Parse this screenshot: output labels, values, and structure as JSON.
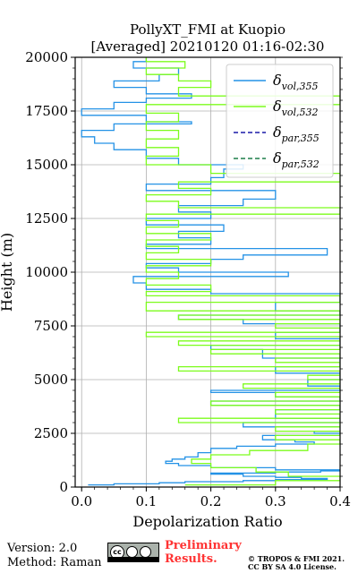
{
  "chart_data": {
    "type": "line",
    "title": "PollyXT_FMI at Kuopio",
    "subtitle": "[Averaged] 20210120 01:16-02:30",
    "xlabel": "Depolarization Ratio",
    "ylabel": "Height (m)",
    "xlim": [
      -0.01,
      0.4
    ],
    "ylim": [
      0,
      20000
    ],
    "xticks": [
      "0.0",
      "0.1",
      "0.2",
      "0.3",
      "0.4"
    ],
    "yticks": [
      "0",
      "2500",
      "5000",
      "7500",
      "10000",
      "12500",
      "15000",
      "17500",
      "20000"
    ],
    "grid": true,
    "legend_position": "top-right",
    "legend": [
      {
        "key": "vol355",
        "base": "δ",
        "sub": "vol,355",
        "color": "#2492e6",
        "style": "solid"
      },
      {
        "key": "vol532",
        "base": "δ",
        "sub": "vol,532",
        "color": "#7cfc1c",
        "style": "solid"
      },
      {
        "key": "par355",
        "base": "δ",
        "sub": "par,355",
        "color": "#1a1aa8",
        "style": "dashed"
      },
      {
        "key": "par532",
        "base": "δ",
        "sub": "par,532",
        "color": "#1d7f4a",
        "style": "dashed"
      }
    ],
    "series": [
      {
        "name": "δvol,355",
        "color": "#2492e6",
        "points": [
          [
            0.01,
            100
          ],
          [
            0.05,
            150
          ],
          [
            0.12,
            200
          ],
          [
            0.16,
            250
          ],
          [
            0.25,
            300
          ],
          [
            0.3,
            350
          ],
          [
            0.38,
            400
          ],
          [
            0.34,
            450
          ],
          [
            0.3,
            500
          ],
          [
            0.25,
            600
          ],
          [
            0.2,
            650
          ],
          [
            0.3,
            700
          ],
          [
            0.37,
            750
          ],
          [
            0.4,
            800
          ],
          [
            0.3,
            900
          ],
          [
            0.2,
            1000
          ],
          [
            0.15,
            1100
          ],
          [
            0.13,
            1200
          ],
          [
            0.14,
            1300
          ],
          [
            0.16,
            1400
          ],
          [
            0.18,
            1600
          ],
          [
            0.2,
            1800
          ],
          [
            0.24,
            1900
          ],
          [
            0.3,
            2000
          ],
          [
            0.36,
            2100
          ],
          [
            0.33,
            2200
          ],
          [
            0.28,
            2400
          ],
          [
            0.4,
            2500
          ],
          [
            0.36,
            2600
          ],
          [
            0.4,
            2800
          ],
          [
            0.25,
            3000
          ],
          [
            0.4,
            3200
          ],
          [
            0.3,
            3600
          ],
          [
            0.4,
            3800
          ],
          [
            0.2,
            4000
          ],
          [
            0.4,
            4200
          ],
          [
            0.3,
            4400
          ],
          [
            0.2,
            4500
          ],
          [
            0.4,
            4700
          ],
          [
            0.35,
            5000
          ],
          [
            0.4,
            5300
          ],
          [
            0.3,
            5600
          ],
          [
            0.4,
            6000
          ],
          [
            0.28,
            6400
          ],
          [
            0.2,
            6600
          ],
          [
            0.4,
            6900
          ],
          [
            0.3,
            7200
          ],
          [
            0.4,
            7600
          ],
          [
            0.25,
            7800
          ],
          [
            0.15,
            8000
          ],
          [
            0.4,
            8200
          ],
          [
            0.3,
            8600
          ],
          [
            0.4,
            9000
          ],
          [
            0.2,
            9200
          ],
          [
            0.1,
            9500
          ],
          [
            0.08,
            9800
          ],
          [
            0.32,
            10000
          ],
          [
            0.15,
            10200
          ],
          [
            0.1,
            10400
          ],
          [
            0.2,
            10600
          ],
          [
            0.25,
            10800
          ],
          [
            0.38,
            11100
          ],
          [
            0.1,
            11300
          ],
          [
            0.2,
            11600
          ],
          [
            0.15,
            11900
          ],
          [
            0.22,
            12200
          ],
          [
            0.1,
            12500
          ],
          [
            0.2,
            12800
          ],
          [
            0.15,
            13100
          ],
          [
            0.25,
            13400
          ],
          [
            0.3,
            13800
          ],
          [
            0.1,
            14100
          ],
          [
            0.2,
            14400
          ],
          [
            0.22,
            14800
          ],
          [
            0.25,
            15000
          ],
          [
            0.15,
            15300
          ],
          [
            0.1,
            15700
          ],
          [
            0.05,
            16000
          ],
          [
            0.02,
            16300
          ],
          [
            0.0,
            16600
          ],
          [
            0.05,
            16900
          ],
          [
            0.17,
            17000
          ],
          [
            0.1,
            17300
          ],
          [
            0.0,
            17600
          ],
          [
            0.05,
            17900
          ],
          [
            0.1,
            18100
          ],
          [
            0.17,
            18300
          ],
          [
            0.1,
            18600
          ],
          [
            0.05,
            18900
          ],
          [
            0.12,
            19200
          ],
          [
            0.15,
            19500
          ],
          [
            0.08,
            19800
          ],
          [
            0.1,
            20000
          ]
        ]
      },
      {
        "name": "δvol,532",
        "color": "#7cfc1c",
        "points": [
          [
            0.16,
            100
          ],
          [
            0.3,
            300
          ],
          [
            0.4,
            500
          ],
          [
            0.32,
            700
          ],
          [
            0.27,
            900
          ],
          [
            0.2,
            1100
          ],
          [
            0.17,
            1300
          ],
          [
            0.2,
            1500
          ],
          [
            0.26,
            1700
          ],
          [
            0.35,
            2000
          ],
          [
            0.4,
            2200
          ],
          [
            0.3,
            2400
          ],
          [
            0.4,
            2600
          ],
          [
            0.3,
            2800
          ],
          [
            0.4,
            3000
          ],
          [
            0.15,
            3200
          ],
          [
            0.4,
            3400
          ],
          [
            0.3,
            3600
          ],
          [
            0.4,
            3800
          ],
          [
            0.2,
            4000
          ],
          [
            0.4,
            4200
          ],
          [
            0.3,
            4400
          ],
          [
            0.4,
            4600
          ],
          [
            0.25,
            4800
          ],
          [
            0.4,
            5000
          ],
          [
            0.35,
            5200
          ],
          [
            0.4,
            5400
          ],
          [
            0.15,
            5600
          ],
          [
            0.4,
            5800
          ],
          [
            0.3,
            6000
          ],
          [
            0.4,
            6200
          ],
          [
            0.2,
            6400
          ],
          [
            0.4,
            6600
          ],
          [
            0.15,
            6800
          ],
          [
            0.4,
            7000
          ],
          [
            0.1,
            7200
          ],
          [
            0.4,
            7400
          ],
          [
            0.3,
            7600
          ],
          [
            0.4,
            7800
          ],
          [
            0.15,
            8000
          ],
          [
            0.4,
            8200
          ],
          [
            0.1,
            8600
          ],
          [
            0.4,
            8900
          ],
          [
            0.1,
            9100
          ],
          [
            0.2,
            9400
          ],
          [
            0.1,
            9700
          ],
          [
            0.15,
            10000
          ],
          [
            0.1,
            10300
          ],
          [
            0.2,
            10600
          ],
          [
            0.1,
            10900
          ],
          [
            0.15,
            11200
          ],
          [
            0.1,
            11500
          ],
          [
            0.2,
            11800
          ],
          [
            0.1,
            12100
          ],
          [
            0.15,
            12400
          ],
          [
            0.1,
            12700
          ],
          [
            0.4,
            13000
          ],
          [
            0.15,
            13300
          ],
          [
            0.1,
            13600
          ],
          [
            0.2,
            13900
          ],
          [
            0.15,
            14200
          ],
          [
            0.4,
            14600
          ],
          [
            0.2,
            15000
          ],
          [
            0.1,
            15400
          ],
          [
            0.15,
            15800
          ],
          [
            0.1,
            16200
          ],
          [
            0.15,
            16600
          ],
          [
            0.1,
            17000
          ],
          [
            0.15,
            17400
          ],
          [
            0.1,
            17800
          ],
          [
            0.4,
            18200
          ],
          [
            0.15,
            18600
          ],
          [
            0.2,
            18900
          ],
          [
            0.15,
            19200
          ],
          [
            0.1,
            19500
          ],
          [
            0.16,
            19800
          ],
          [
            0.1,
            20000
          ]
        ]
      }
    ]
  },
  "footer": {
    "version": "Version: 2.0",
    "method": "Method: Raman",
    "preliminary": [
      "Preliminary",
      "Results."
    ],
    "copyright": [
      "© TROPOS & FMI 2021.",
      "CC BY SA 4.0 License."
    ],
    "license_logo": "cc-by-sa-logo"
  }
}
